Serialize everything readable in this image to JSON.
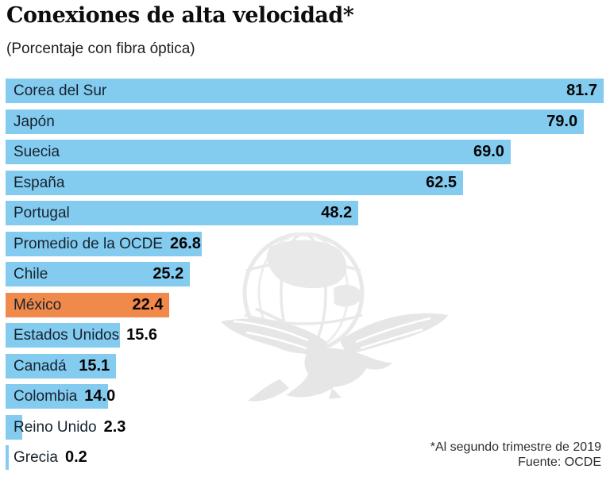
{
  "header": {
    "title": "Conexiones de alta velocidad*",
    "subtitle": "(Porcentaje con fibra óptica)"
  },
  "footer": {
    "footnote": "*Al segundo trimestre de 2019",
    "source": "Fuente: OCDE"
  },
  "watermark": "eagle-over-globe-publisher-logo",
  "chart_data": {
    "type": "bar",
    "orientation": "horizontal",
    "title": "Conexiones de alta velocidad*",
    "subtitle": "(Porcentaje con fibra óptica)",
    "xlabel": "",
    "ylabel": "",
    "unit": "percent",
    "xlim": [
      0,
      81.7
    ],
    "grid": false,
    "legend": false,
    "bar_color": "#84CBF0",
    "highlight_color": "#F0894A",
    "highlight_category": "México",
    "categories": [
      "Corea del Sur",
      "Japón",
      "Suecia",
      "España",
      "Portugal",
      "Promedio de la OCDE",
      "Chile",
      "México",
      "Estados Unidos",
      "Canadá",
      "Colombia",
      "Reino Unido",
      "Grecia"
    ],
    "values": [
      81.7,
      79.0,
      69.0,
      62.5,
      48.2,
      26.8,
      25.2,
      22.4,
      15.6,
      15.1,
      14.0,
      2.3,
      0.2
    ],
    "rows": [
      {
        "label": "Corea del Sur",
        "value": 81.7,
        "display": "81.7",
        "value_inside": true,
        "highlight": false
      },
      {
        "label": "Japón",
        "value": 79.0,
        "display": "79.0",
        "value_inside": true,
        "highlight": false
      },
      {
        "label": "Suecia",
        "value": 69.0,
        "display": "69.0",
        "value_inside": true,
        "highlight": false
      },
      {
        "label": "España",
        "value": 62.5,
        "display": "62.5",
        "value_inside": true,
        "highlight": false
      },
      {
        "label": "Portugal",
        "value": 48.2,
        "display": "48.2",
        "value_inside": true,
        "highlight": false
      },
      {
        "label": "Promedio de la OCDE",
        "value": 26.8,
        "display": "26.8",
        "value_inside": false,
        "highlight": false
      },
      {
        "label": "Chile",
        "value": 25.2,
        "display": "25.2",
        "value_inside": true,
        "highlight": false
      },
      {
        "label": "México",
        "value": 22.4,
        "display": "22.4",
        "value_inside": true,
        "highlight": true
      },
      {
        "label": "Estados Unidos",
        "value": 15.6,
        "display": "15.6",
        "value_inside": false,
        "highlight": false
      },
      {
        "label": "Canadá",
        "value": 15.1,
        "display": "15.1",
        "value_inside": true,
        "highlight": false
      },
      {
        "label": "Colombia",
        "value": 14.0,
        "display": "14.0",
        "value_inside": false,
        "highlight": false
      },
      {
        "label": "Reino Unido",
        "value": 2.3,
        "display": "2.3",
        "value_inside": false,
        "highlight": false
      },
      {
        "label": "Grecia",
        "value": 0.2,
        "display": "0.2",
        "value_inside": false,
        "highlight": false
      }
    ],
    "footnote": "*Al segundo trimestre de 2019",
    "source": "Fuente: OCDE"
  }
}
